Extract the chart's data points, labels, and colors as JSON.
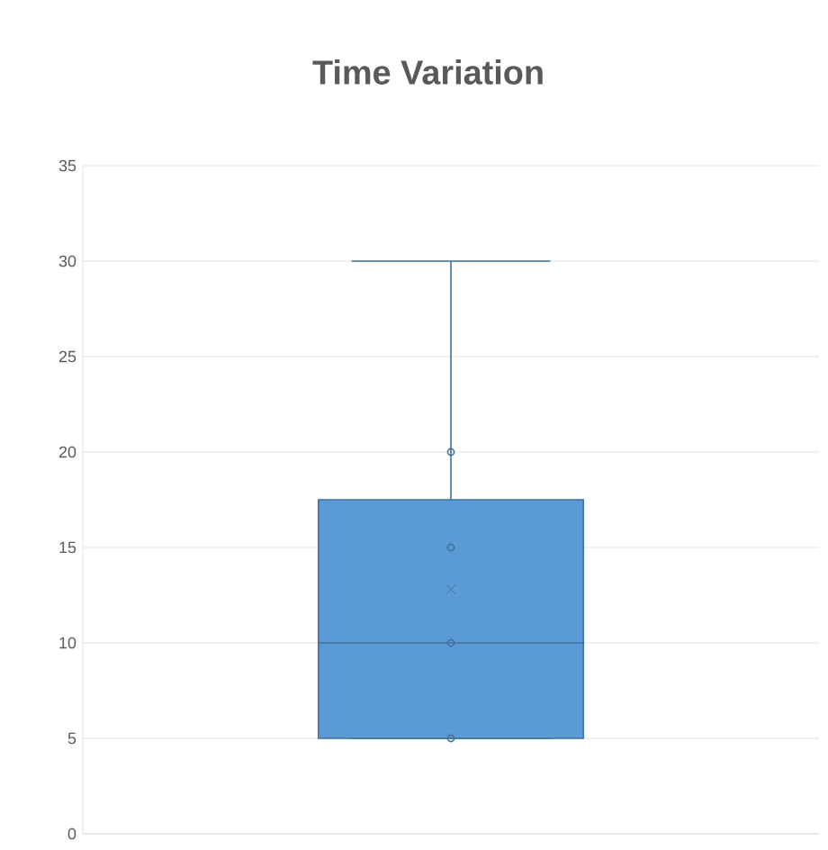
{
  "chart_data": {
    "type": "box",
    "title": "Time Variation",
    "categories": [
      null
    ],
    "color": "#5b9bd5",
    "boxes": [
      {
        "low": 5,
        "q1": 5,
        "median": 10,
        "q3": 17.5,
        "high": 30,
        "mean": 12.8,
        "outliers": [
          5,
          10,
          15,
          20
        ]
      }
    ],
    "ylim": [
      0,
      35
    ],
    "yticks": [
      0,
      5,
      10,
      15,
      20,
      25,
      30,
      35
    ],
    "grid": "y"
  }
}
